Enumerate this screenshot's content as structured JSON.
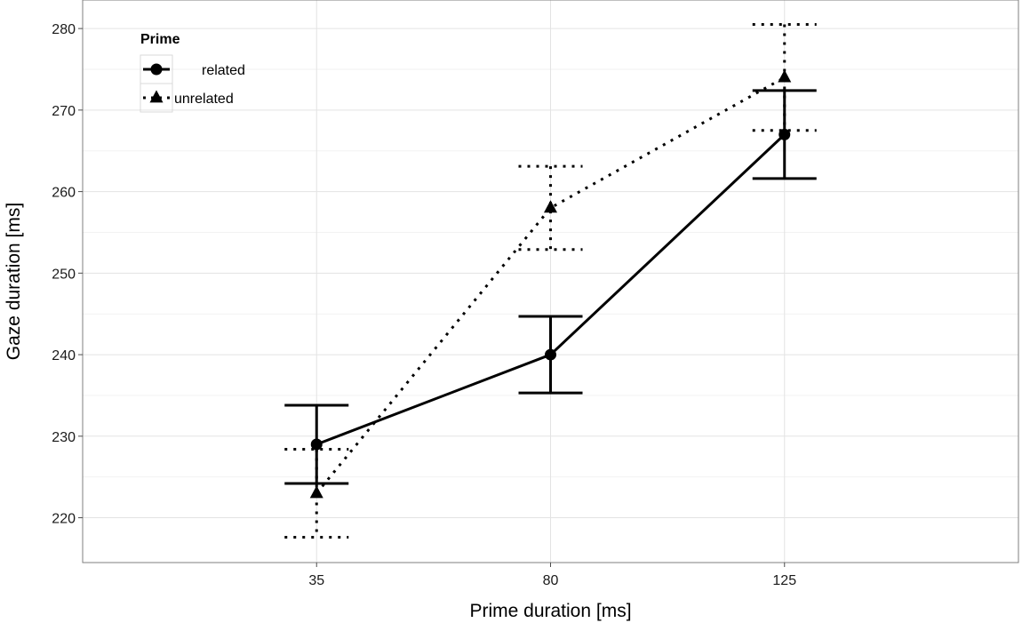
{
  "chart_data": {
    "type": "line",
    "xlabel": "Prime duration [ms]",
    "ylabel": "Gaze duration [ms]",
    "categories": [
      "35",
      "80",
      "125"
    ],
    "ylim": [
      214.5,
      283.5
    ],
    "yticks": [
      220,
      230,
      240,
      250,
      260,
      270,
      280
    ],
    "grid": true,
    "legend": {
      "title": "Prime",
      "position": "top-left"
    },
    "series": [
      {
        "name": "related",
        "line_style": "solid",
        "marker": "circle",
        "values": [
          229,
          240,
          267
        ],
        "error_low": [
          224.2,
          235.3,
          261.6
        ],
        "error_high": [
          233.8,
          244.7,
          272.4
        ]
      },
      {
        "name": "unrelated",
        "line_style": "dotted",
        "marker": "triangle",
        "values": [
          223,
          258,
          274
        ],
        "error_low": [
          217.6,
          252.9,
          267.5
        ],
        "error_high": [
          228.4,
          263.1,
          280.5
        ]
      }
    ]
  }
}
